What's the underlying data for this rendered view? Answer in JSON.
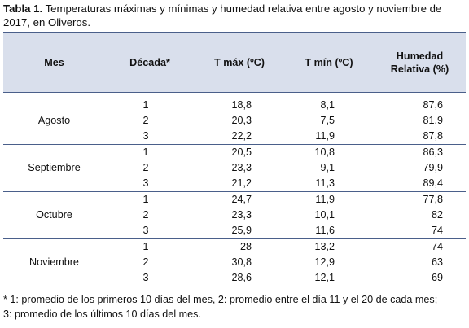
{
  "caption": {
    "label": "Tabla 1.",
    "text": " Temperaturas máximas y mínimas y humedad relativa entre agosto y noviembre de 2017, en Oliveros."
  },
  "table": {
    "headers": {
      "mes": "Mes",
      "decada": "Década*",
      "tmax": "T máx (ºC)",
      "tmin": "T mín (ºC)",
      "humedad_line1": "Humedad",
      "humedad_line2": "Relativa (%)"
    },
    "months": [
      {
        "name": "Agosto",
        "rows": [
          {
            "decada": "1",
            "tmax": "18,8",
            "tmin": "8,1",
            "hum": "87,6"
          },
          {
            "decada": "2",
            "tmax": "20,3",
            "tmin": "7,5",
            "hum": "81,9"
          },
          {
            "decada": "3",
            "tmax": "22,2",
            "tmin": "11,9",
            "hum": "87,8"
          }
        ]
      },
      {
        "name": "Septiembre",
        "rows": [
          {
            "decada": "1",
            "tmax": "20,5",
            "tmin": "10,8",
            "hum": "86,3"
          },
          {
            "decada": "2",
            "tmax": "23,3",
            "tmin": "9,1",
            "hum": "79,9"
          },
          {
            "decada": "3",
            "tmax": "21,2",
            "tmin": "11,3",
            "hum": "89,4"
          }
        ]
      },
      {
        "name": "Octubre",
        "rows": [
          {
            "decada": "1",
            "tmax": "24,7",
            "tmin": "11,9",
            "hum": "77,8"
          },
          {
            "decada": "2",
            "tmax": "23,3",
            "tmin": "10,1",
            "hum": "82"
          },
          {
            "decada": "3",
            "tmax": "25,9",
            "tmin": "11,6",
            "hum": "74"
          }
        ]
      },
      {
        "name": "Noviembre",
        "rows": [
          {
            "decada": "1",
            "tmax": "28",
            "tmin": "13,2",
            "hum": "74"
          },
          {
            "decada": "2",
            "tmax": "30,8",
            "tmin": "12,9",
            "hum": "63"
          },
          {
            "decada": "3",
            "tmax": "28,6",
            "tmin": "12,1",
            "hum": "69"
          }
        ]
      }
    ]
  },
  "footnote": {
    "line1": "* 1: promedio de los primeros 10 días del mes, 2: promedio entre el día 11 y el 20 de cada mes;",
    "line2": "3: promedio de los últimos 10 días del mes."
  }
}
